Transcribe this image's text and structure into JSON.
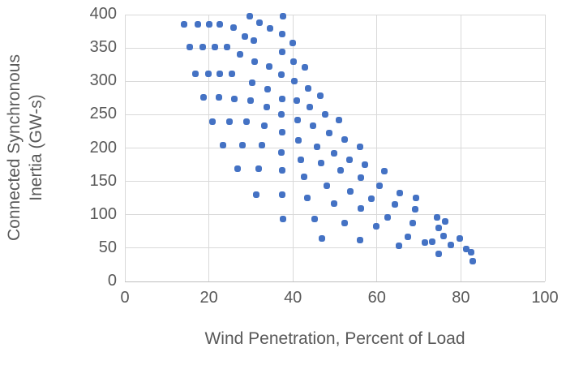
{
  "chart_data": {
    "type": "scatter",
    "title": "",
    "xlabel": "Wind Penetration, Percent of Load",
    "ylabel": "Connected Synchronous Inertia (GW-s)",
    "ylabel_lines": [
      "Connected Synchronous",
      "Inertia (GW-s)"
    ],
    "xlim": [
      0,
      100
    ],
    "ylim": [
      0,
      400
    ],
    "x_ticks": [
      0,
      20,
      40,
      60,
      80,
      100
    ],
    "y_ticks": [
      0,
      50,
      100,
      150,
      200,
      250,
      300,
      350,
      400
    ],
    "grid": true,
    "legend": "none",
    "marker_color": "#4472C4",
    "grid_color": "#D9D9D9",
    "axis_line_color": "#BFBFBF",
    "text_color": "#595959",
    "series_name": "connected-synchronous-inertia-vs-wind-penetration",
    "points": [
      [
        14.1,
        386
      ],
      [
        17.3,
        386
      ],
      [
        20.1,
        386
      ],
      [
        22.6,
        386
      ],
      [
        25.8,
        381
      ],
      [
        29.7,
        398
      ],
      [
        32.0,
        388
      ],
      [
        34.6,
        379
      ],
      [
        37.6,
        398
      ],
      [
        37.4,
        371
      ],
      [
        40.0,
        358
      ],
      [
        28.6,
        367
      ],
      [
        30.7,
        361
      ],
      [
        15.4,
        351
      ],
      [
        18.5,
        351
      ],
      [
        21.4,
        351
      ],
      [
        24.3,
        351
      ],
      [
        27.5,
        341
      ],
      [
        37.4,
        344
      ],
      [
        30.9,
        330
      ],
      [
        40.1,
        330
      ],
      [
        34.4,
        322
      ],
      [
        42.9,
        321
      ],
      [
        16.7,
        311
      ],
      [
        19.8,
        311
      ],
      [
        22.6,
        311
      ],
      [
        25.4,
        311
      ],
      [
        30.3,
        298
      ],
      [
        37.3,
        310
      ],
      [
        40.3,
        300
      ],
      [
        33.9,
        288
      ],
      [
        43.6,
        289
      ],
      [
        46.6,
        278
      ],
      [
        18.8,
        276
      ],
      [
        22.4,
        276
      ],
      [
        26.0,
        274
      ],
      [
        30.0,
        271
      ],
      [
        37.4,
        274
      ],
      [
        41.0,
        271
      ],
      [
        33.7,
        261
      ],
      [
        44.0,
        262
      ],
      [
        37.3,
        250
      ],
      [
        47.7,
        251
      ],
      [
        20.9,
        240
      ],
      [
        24.9,
        240
      ],
      [
        29.0,
        240
      ],
      [
        33.2,
        233
      ],
      [
        41.2,
        242
      ],
      [
        44.7,
        233
      ],
      [
        50.9,
        242
      ],
      [
        37.4,
        224
      ],
      [
        48.6,
        223
      ],
      [
        41.4,
        212
      ],
      [
        52.3,
        213
      ],
      [
        23.3,
        204
      ],
      [
        27.9,
        204
      ],
      [
        32.6,
        204
      ],
      [
        45.7,
        202
      ],
      [
        55.9,
        202
      ],
      [
        37.3,
        193
      ],
      [
        49.8,
        192
      ],
      [
        41.9,
        182
      ],
      [
        53.5,
        182
      ],
      [
        26.8,
        169
      ],
      [
        31.9,
        169
      ],
      [
        37.4,
        167
      ],
      [
        46.8,
        177
      ],
      [
        57.2,
        175
      ],
      [
        61.8,
        165
      ],
      [
        42.7,
        157
      ],
      [
        51.4,
        166
      ],
      [
        56.1,
        156
      ],
      [
        48.0,
        143
      ],
      [
        60.7,
        144
      ],
      [
        31.2,
        130
      ],
      [
        37.5,
        130
      ],
      [
        43.4,
        125
      ],
      [
        53.6,
        135
      ],
      [
        65.4,
        133
      ],
      [
        49.8,
        117
      ],
      [
        58.7,
        124
      ],
      [
        69.3,
        125
      ],
      [
        64.3,
        116
      ],
      [
        69.2,
        108
      ],
      [
        56.2,
        109
      ],
      [
        37.6,
        94
      ],
      [
        45.1,
        94
      ],
      [
        52.4,
        88
      ],
      [
        62.5,
        96
      ],
      [
        59.8,
        83
      ],
      [
        68.5,
        88
      ],
      [
        74.4,
        96
      ],
      [
        76.3,
        90
      ],
      [
        74.7,
        80
      ],
      [
        47.0,
        64
      ],
      [
        55.9,
        62
      ],
      [
        67.3,
        67
      ],
      [
        65.3,
        54
      ],
      [
        71.4,
        58
      ],
      [
        73.1,
        60
      ],
      [
        75.8,
        68
      ],
      [
        79.7,
        65
      ],
      [
        77.6,
        55
      ],
      [
        81.3,
        49
      ],
      [
        82.4,
        44
      ],
      [
        74.8,
        41
      ],
      [
        82.8,
        31
      ]
    ]
  }
}
